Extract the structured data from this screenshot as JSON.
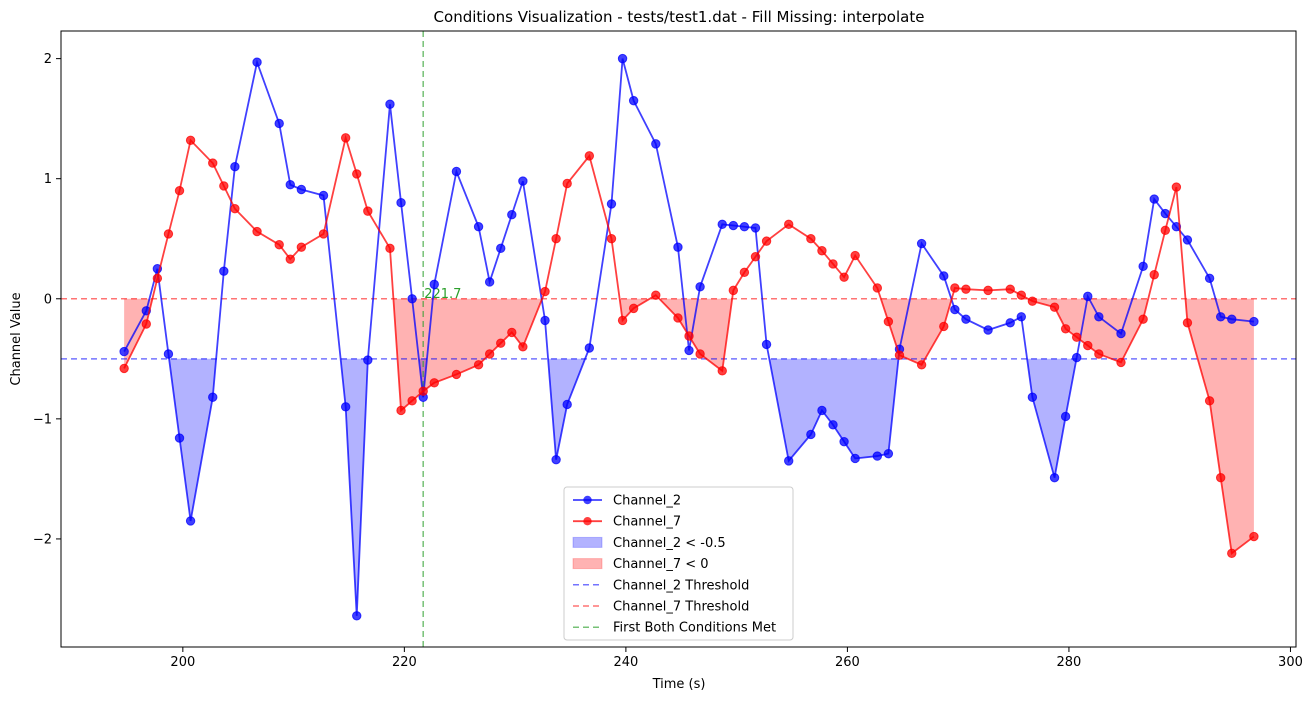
{
  "chart_data": {
    "type": "line",
    "title": "Conditions Visualization - tests/test1.dat - Fill Missing: interpolate",
    "xlabel": "Time (s)",
    "ylabel": "Channel Value",
    "xlim": [
      189.0,
      300.5
    ],
    "ylim": [
      -2.9,
      2.23
    ],
    "x_ticks": [
      200,
      220,
      240,
      260,
      280,
      300
    ],
    "y_ticks": [
      -2,
      -1,
      0,
      1,
      2
    ],
    "x_tick_labels": [
      "200",
      "220",
      "240",
      "260",
      "280",
      "300"
    ],
    "y_tick_labels": [
      "−2",
      "−1",
      "0",
      "1",
      "2"
    ],
    "grid": false,
    "legend_position": "lower center",
    "series": [
      {
        "name": "Channel_2",
        "color": "#0000ff",
        "threshold": -0.5,
        "fill_label": "Channel_2 < -0.5",
        "threshold_label": "Channel_2 Threshold",
        "x": [
          194.7,
          196.7,
          197.7,
          198.7,
          199.7,
          200.7,
          202.7,
          203.7,
          204.7,
          206.7,
          208.7,
          209.7,
          210.7,
          212.7,
          214.7,
          215.7,
          216.7,
          218.7,
          219.7,
          220.7,
          221.7,
          222.7,
          224.7,
          226.7,
          227.7,
          228.7,
          229.7,
          230.7,
          232.7,
          233.7,
          234.7,
          236.7,
          238.7,
          239.7,
          240.7,
          242.7,
          244.7,
          245.7,
          246.7,
          248.7,
          249.7,
          250.7,
          251.7,
          252.7,
          254.7,
          256.7,
          257.7,
          258.7,
          259.7,
          260.7,
          262.7,
          263.7,
          264.7,
          266.7,
          268.7,
          269.7,
          270.7,
          272.7,
          274.7,
          275.7,
          276.7,
          278.7,
          279.7,
          280.7,
          281.7,
          282.7,
          284.7,
          286.7,
          287.7,
          288.7,
          289.7,
          290.7,
          292.7,
          293.7,
          294.7,
          296.7
        ],
        "values": [
          -0.44,
          -0.1,
          0.25,
          -0.46,
          -1.16,
          -1.85,
          -0.82,
          0.23,
          1.1,
          1.97,
          1.46,
          0.95,
          0.91,
          0.86,
          -0.9,
          -2.64,
          -0.51,
          1.62,
          0.8,
          0.0,
          -0.82,
          0.12,
          1.06,
          0.6,
          0.14,
          0.42,
          0.7,
          0.98,
          -0.18,
          -1.34,
          -0.88,
          -0.41,
          0.79,
          2.0,
          1.65,
          1.29,
          0.43,
          -0.43,
          0.1,
          0.62,
          0.61,
          0.6,
          0.59,
          -0.38,
          -1.35,
          -1.13,
          -0.93,
          -1.05,
          -1.19,
          -1.33,
          -1.31,
          -1.29,
          -0.42,
          0.46,
          0.19,
          -0.09,
          -0.17,
          -0.26,
          -0.2,
          -0.15,
          -0.82,
          -1.49,
          -0.98,
          -0.49,
          0.02,
          -0.15,
          -0.29,
          0.27,
          0.83,
          0.71,
          0.6,
          0.49,
          0.17,
          -0.15,
          -0.17,
          -0.19
        ]
      },
      {
        "name": "Channel_7",
        "color": "#ff0000",
        "threshold": 0,
        "fill_label": "Channel_7 < 0",
        "threshold_label": "Channel_7 Threshold",
        "x": [
          194.7,
          196.7,
          197.7,
          198.7,
          199.7,
          200.7,
          202.7,
          203.7,
          204.7,
          206.7,
          208.7,
          209.7,
          210.7,
          212.7,
          214.7,
          215.7,
          216.7,
          218.7,
          219.7,
          220.7,
          221.7,
          222.7,
          224.7,
          226.7,
          227.7,
          228.7,
          229.7,
          230.7,
          232.7,
          233.7,
          234.7,
          236.7,
          238.7,
          239.7,
          240.7,
          242.7,
          244.7,
          245.7,
          246.7,
          248.7,
          249.7,
          250.7,
          251.7,
          252.7,
          254.7,
          256.7,
          257.7,
          258.7,
          259.7,
          260.7,
          262.7,
          263.7,
          264.7,
          266.7,
          268.7,
          269.7,
          270.7,
          272.7,
          274.7,
          275.7,
          276.7,
          278.7,
          279.7,
          280.7,
          281.7,
          282.7,
          284.7,
          286.7,
          287.7,
          288.7,
          289.7,
          290.7,
          292.7,
          293.7,
          294.7,
          296.7
        ],
        "values": [
          -0.58,
          -0.21,
          0.17,
          0.54,
          0.9,
          1.32,
          1.13,
          0.94,
          0.75,
          0.56,
          0.45,
          0.33,
          0.43,
          0.54,
          1.34,
          1.04,
          0.73,
          0.42,
          -0.93,
          -0.85,
          -0.77,
          -0.7,
          -0.63,
          -0.55,
          -0.46,
          -0.37,
          -0.28,
          -0.4,
          0.06,
          0.5,
          0.96,
          1.19,
          0.5,
          -0.18,
          -0.08,
          0.03,
          -0.16,
          -0.31,
          -0.46,
          -0.6,
          0.07,
          0.22,
          0.35,
          0.48,
          0.62,
          0.5,
          0.4,
          0.29,
          0.18,
          0.36,
          0.09,
          -0.19,
          -0.47,
          -0.55,
          -0.23,
          0.09,
          0.08,
          0.07,
          0.08,
          0.03,
          -0.02,
          -0.07,
          -0.25,
          -0.32,
          -0.39,
          -0.46,
          -0.53,
          -0.17,
          0.2,
          0.57,
          0.93,
          -0.2,
          -0.85,
          -1.49,
          -2.12,
          -1.98
        ]
      }
    ],
    "event": {
      "x": 221.7,
      "label": "221.7",
      "legend_label": "First Both Conditions Met",
      "color": "#2ca02c"
    }
  }
}
